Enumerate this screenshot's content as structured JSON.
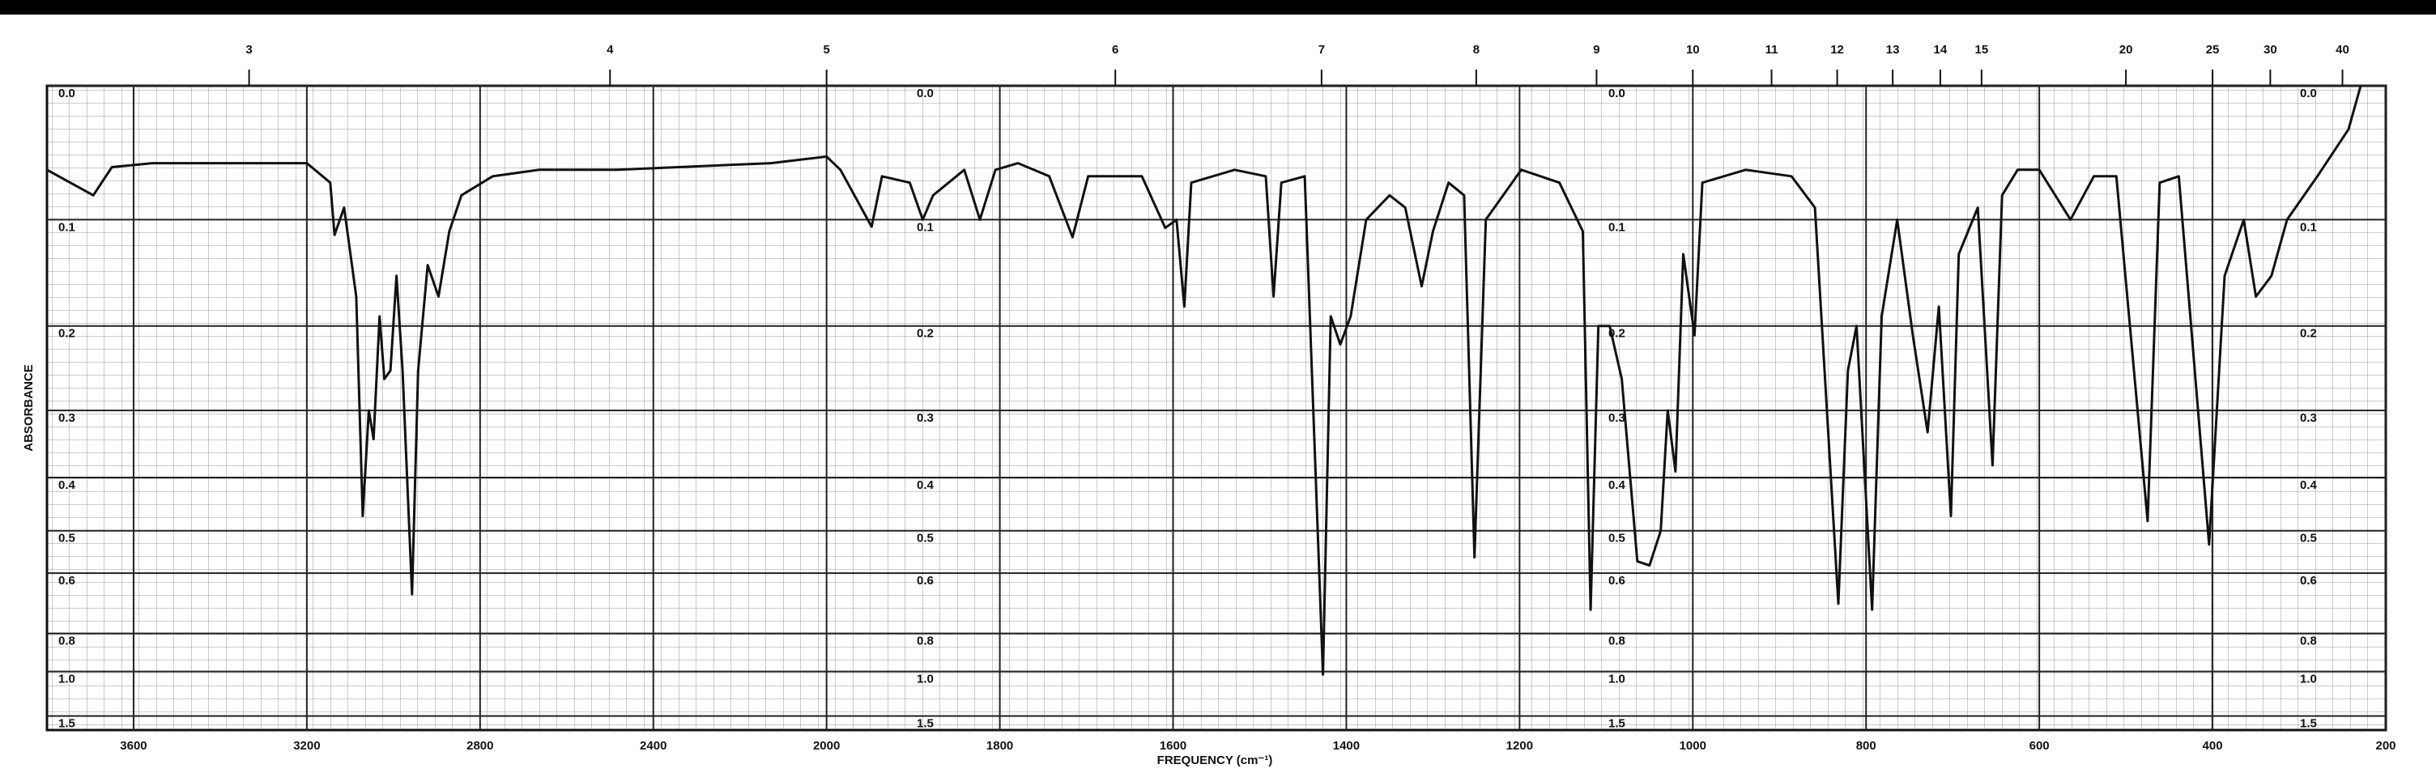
{
  "chart_data": {
    "type": "line",
    "xlabel": "FREQUENCY (cm⁻¹)",
    "ylabel": "ABSORBANCE",
    "xlim": [
      3800,
      200
    ],
    "xscale": {
      "break": 2000,
      "ratio": 2
    },
    "xticks": [
      3600,
      3200,
      2800,
      2400,
      2000,
      1800,
      1600,
      1400,
      1200,
      1000,
      800,
      600,
      400,
      200
    ],
    "x2ticks": [
      3,
      4,
      5,
      6,
      7,
      8,
      9,
      10,
      11,
      12,
      13,
      14,
      15,
      20,
      25,
      30,
      40
    ],
    "ylim": [
      0,
      2
    ],
    "yscale": "absorbance",
    "yticks": [
      {
        "value": 0,
        "label": "0.0"
      },
      0.1,
      0.2,
      0.3,
      0.4,
      0.5,
      0.6,
      0.8,
      {
        "value": 1,
        "label": "1.0"
      },
      1.5
    ],
    "grid": true,
    "series": [
      {
        "color": "#111111",
        "x": [
          3800,
          3693,
          3650,
          3557,
          3200,
          3146,
          3136,
          3114,
          3086,
          3071,
          3057,
          3046,
          3032,
          3021,
          3007,
          2993,
          2979,
          2957,
          2943,
          2921,
          2896,
          2871,
          2843,
          2771,
          2664,
          2486,
          2129,
          2000,
          1984,
          1948,
          1936,
          1904,
          1889,
          1877,
          1841,
          1823,
          1805,
          1779,
          1743,
          1716,
          1698,
          1636,
          1609,
          1596,
          1587,
          1579,
          1529,
          1493,
          1484,
          1475,
          1448,
          1427,
          1418,
          1407,
          1395,
          1377,
          1350,
          1332,
          1313,
          1300,
          1282,
          1264,
          1252,
          1239,
          1198,
          1154,
          1127,
          1118,
          1109,
          1096,
          1082,
          1064,
          1050,
          1037,
          1029,
          1020,
          1011,
          998,
          989,
          939,
          886,
          859,
          832,
          821,
          811,
          793,
          782,
          764,
          746,
          729,
          716,
          702,
          693,
          671,
          654,
          643,
          625,
          600,
          564,
          537,
          511,
          475,
          461,
          439,
          404,
          386,
          364,
          350,
          332,
          314,
          279,
          243,
          229
        ],
        "values": [
          0.06,
          0.08,
          0.058,
          0.055,
          0.055,
          0.07,
          0.113,
          0.09,
          0.17,
          0.47,
          0.3,
          0.34,
          0.19,
          0.26,
          0.25,
          0.15,
          0.25,
          0.66,
          0.25,
          0.14,
          0.17,
          0.11,
          0.08,
          0.065,
          0.06,
          0.06,
          0.055,
          0.05,
          0.06,
          0.106,
          0.065,
          0.07,
          0.1,
          0.08,
          0.06,
          0.1,
          0.06,
          0.055,
          0.065,
          0.115,
          0.065,
          0.065,
          0.107,
          0.1,
          0.18,
          0.07,
          0.06,
          0.065,
          0.17,
          0.07,
          0.065,
          1.02,
          0.19,
          0.22,
          0.19,
          0.1,
          0.08,
          0.09,
          0.16,
          0.11,
          0.07,
          0.08,
          0.56,
          0.1,
          0.06,
          0.07,
          0.11,
          0.71,
          0.2,
          0.2,
          0.26,
          0.57,
          0.58,
          0.5,
          0.3,
          0.39,
          0.13,
          0.21,
          0.07,
          0.06,
          0.065,
          0.09,
          0.69,
          0.25,
          0.2,
          0.71,
          0.19,
          0.1,
          0.21,
          0.33,
          0.18,
          0.47,
          0.13,
          0.09,
          0.38,
          0.08,
          0.06,
          0.06,
          0.1,
          0.065,
          0.065,
          0.48,
          0.07,
          0.065,
          0.53,
          0.15,
          0.1,
          0.17,
          0.15,
          0.1,
          0.065,
          0.03,
          0
        ]
      }
    ]
  }
}
